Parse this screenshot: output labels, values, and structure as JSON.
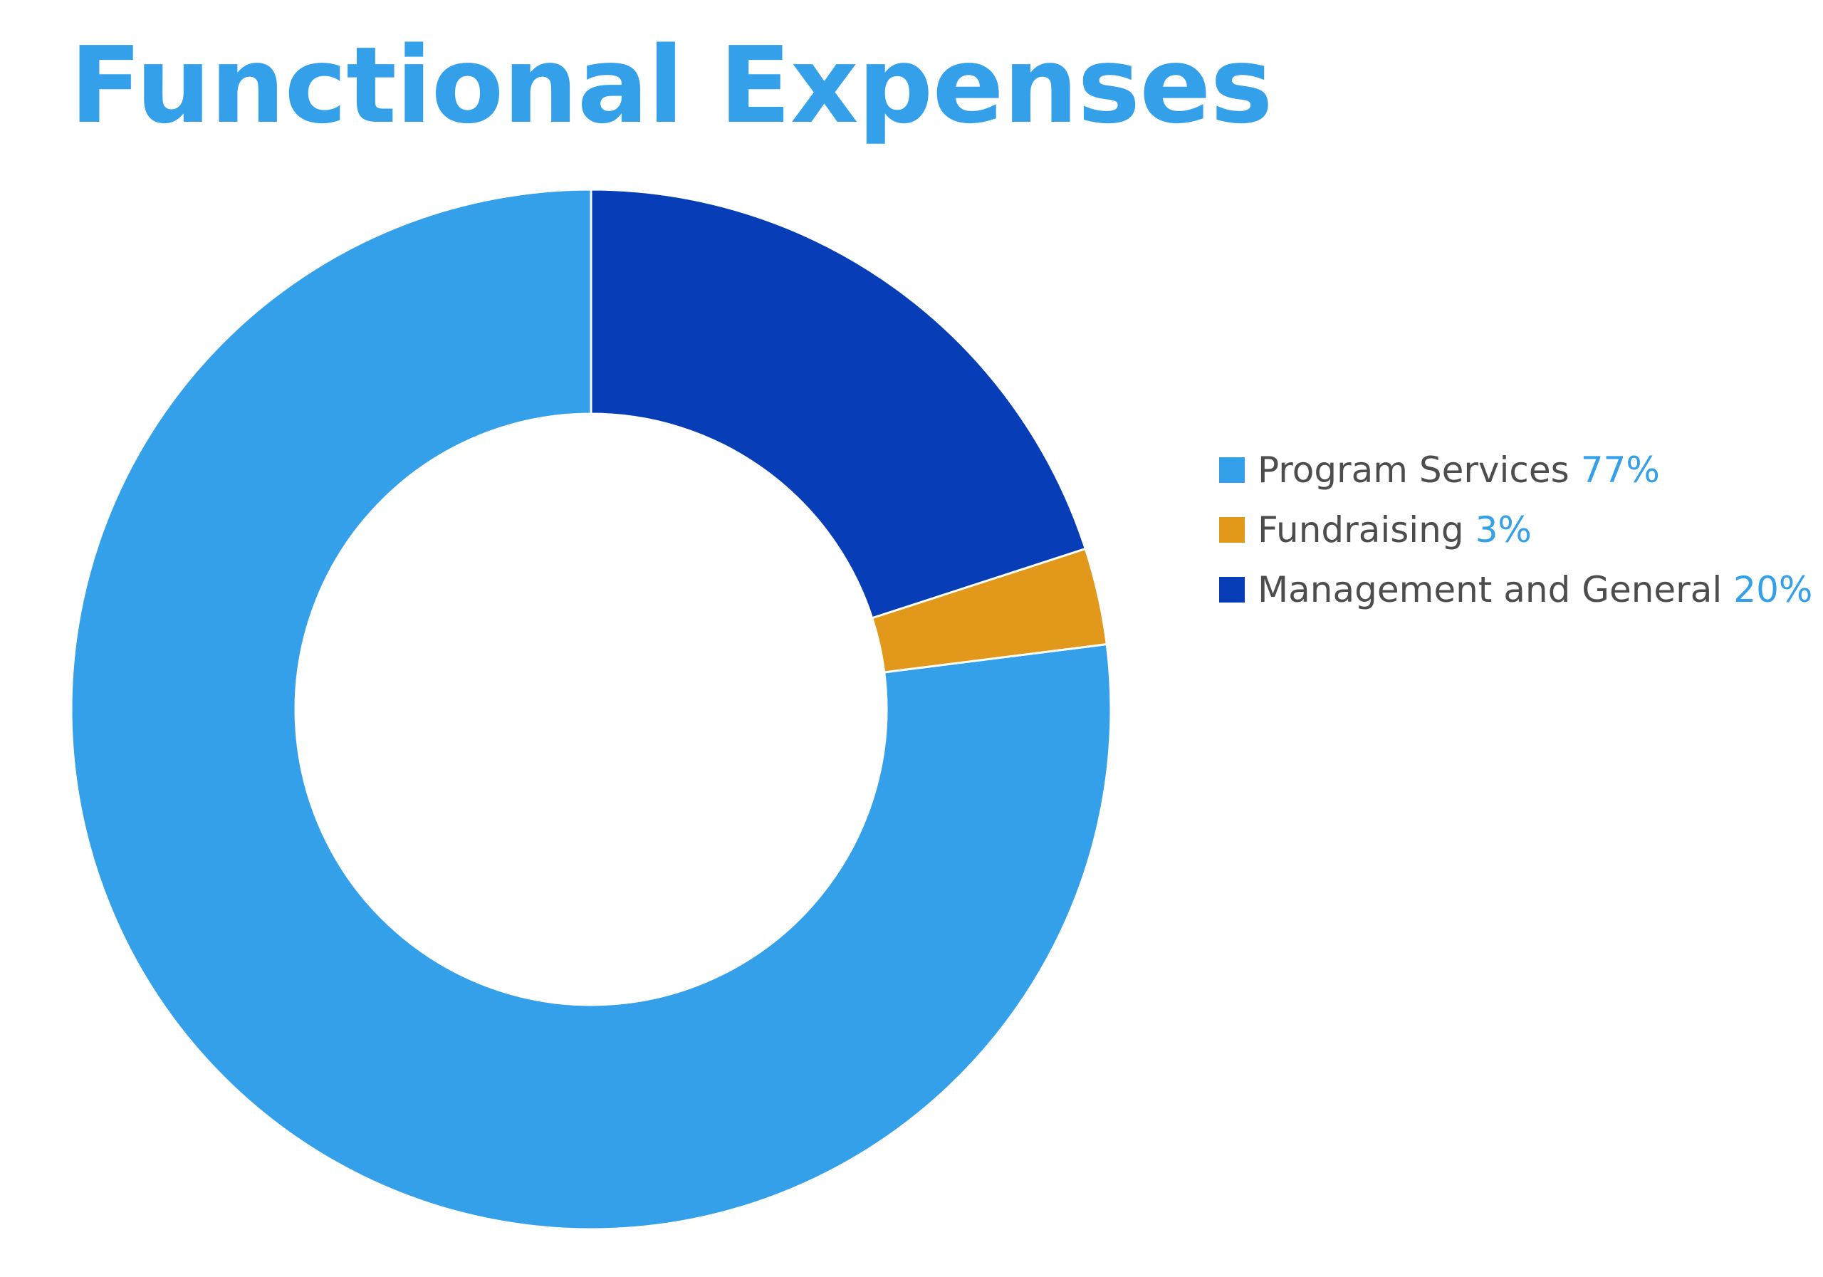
{
  "chart_data": {
    "type": "pie",
    "title": "Functional Expenses",
    "donut": true,
    "start_angle_deg": 0,
    "direction": "counterclockwise",
    "legend_position": "right",
    "slices": [
      {
        "label": "Program Services",
        "value": 77,
        "display": "77%",
        "color": "#34a0e9"
      },
      {
        "label": "Fundraising",
        "value": 3,
        "display": "3%",
        "color": "#e2981b"
      },
      {
        "label": "Management and General",
        "value": 20,
        "display": "20%",
        "color": "#073eb7"
      }
    ],
    "value_color": "#34a0e9",
    "label_color": "#4d4d4d",
    "separator_color": "#ffffff"
  }
}
